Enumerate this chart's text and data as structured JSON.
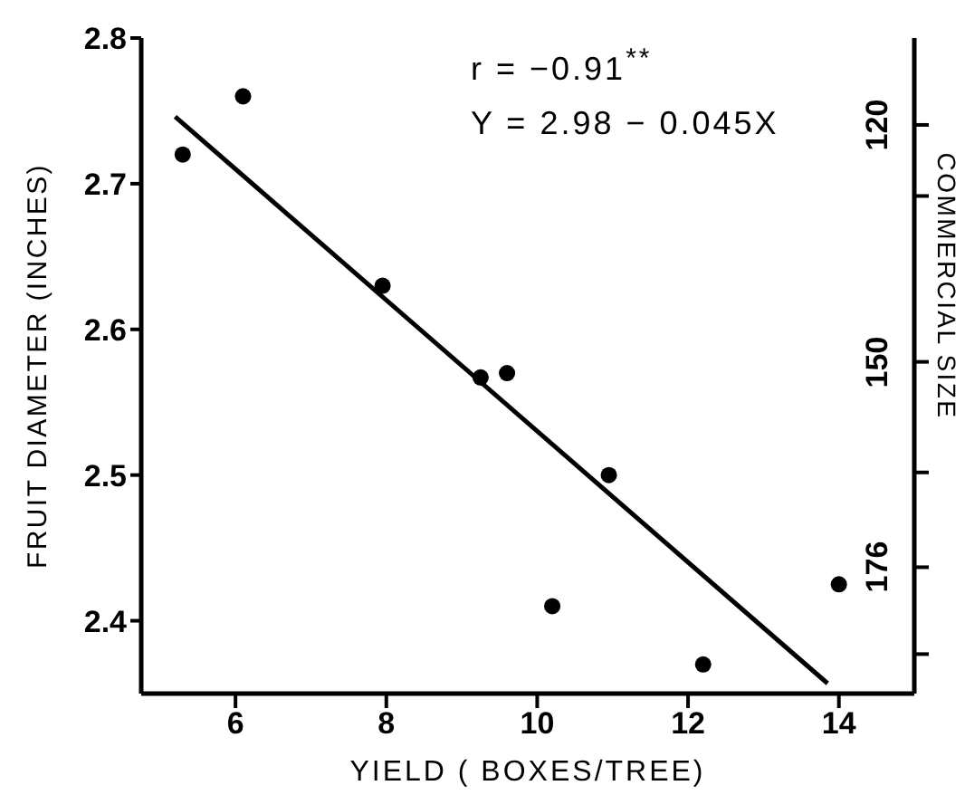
{
  "chart_data": {
    "type": "scatter",
    "xlabel": "YIELD ( BOXES/TREE)",
    "ylabel": "FRUIT DIAMETER (INCHES)",
    "y2label": "COMMERCIAL SIZE",
    "annotations": [
      "r = −0.91$^{**}$",
      "Y = 2.98 − 0.045X"
    ],
    "xlim": [
      4.75,
      15
    ],
    "xticks": [
      6,
      8,
      10,
      12,
      14
    ],
    "ylim": [
      2.35,
      2.8
    ],
    "yticks": [
      2.4,
      2.5,
      2.6,
      2.7,
      2.8
    ],
    "y2lim": [
      192,
      109
    ],
    "y2ticks": [
      120,
      {
        "value": 129,
        "label": null
      },
      150,
      {
        "value": 164,
        "label": null
      },
      176,
      {
        "value": 187,
        "label": null
      }
    ],
    "grid": false,
    "legend": false,
    "series": [
      {
        "marker": "circle",
        "color": "#000000",
        "x": [
          5.3,
          6.1,
          7.95,
          9.25,
          9.6,
          10.2,
          10.95,
          12.2,
          14.0
        ],
        "values": [
          2.72,
          2.76,
          2.63,
          2.567,
          2.57,
          2.41,
          2.5,
          2.37,
          2.425
        ]
      },
      {
        "type": "line",
        "marker": "none",
        "color": "#000000",
        "x": [
          5.2,
          13.85
        ],
        "values": [
          2.746,
          2.357
        ]
      }
    ]
  }
}
